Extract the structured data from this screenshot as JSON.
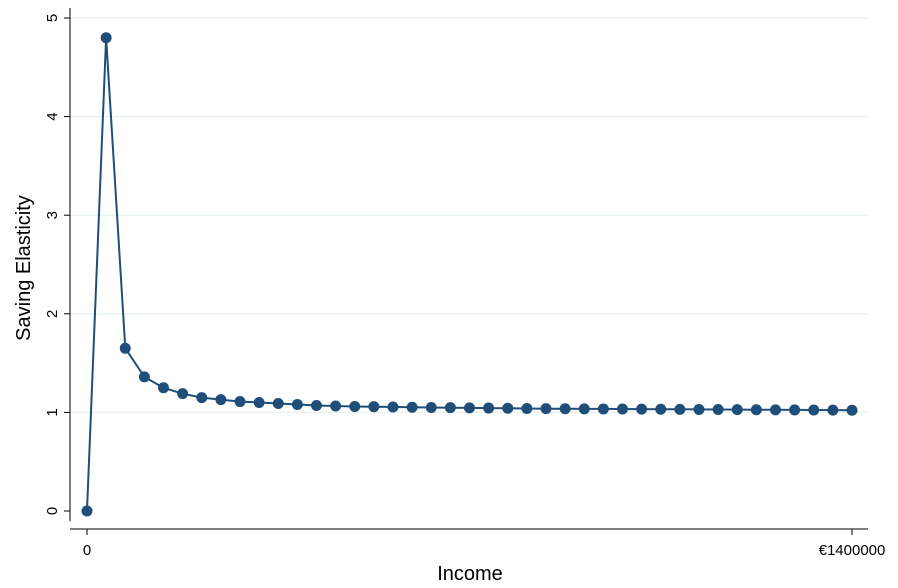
{
  "chart_data": {
    "type": "line",
    "title": "",
    "xlabel": "Income",
    "ylabel": "Saving Elasticity",
    "x_tick_labels": [
      "0",
      "€1400000"
    ],
    "x_ticks": [
      0,
      1400000
    ],
    "y_ticks": [
      0,
      1,
      2,
      3,
      4,
      5
    ],
    "xlim": [
      0,
      1400000
    ],
    "ylim": [
      0,
      5
    ],
    "grid": "horizontal",
    "legend": "none",
    "series": [
      {
        "marker": "circle",
        "color": "#1f4e79",
        "x": [
          0,
          35000,
          70000,
          105000,
          140000,
          175000,
          210000,
          245000,
          280000,
          315000,
          350000,
          385000,
          420000,
          455000,
          490000,
          525000,
          560000,
          595000,
          630000,
          665000,
          700000,
          735000,
          770000,
          805000,
          840000,
          875000,
          910000,
          945000,
          980000,
          1015000,
          1050000,
          1085000,
          1120000,
          1155000,
          1190000,
          1225000,
          1260000,
          1295000,
          1330000,
          1365000,
          1400000
        ],
        "values": [
          0,
          4.8,
          1.65,
          1.36,
          1.25,
          1.19,
          1.15,
          1.13,
          1.11,
          1.1,
          1.09,
          1.08,
          1.07,
          1.065,
          1.06,
          1.058,
          1.055,
          1.052,
          1.05,
          1.048,
          1.046,
          1.044,
          1.042,
          1.04,
          1.038,
          1.037,
          1.036,
          1.035,
          1.034,
          1.033,
          1.032,
          1.031,
          1.03,
          1.029,
          1.028,
          1.027,
          1.026,
          1.025,
          1.024,
          1.023,
          1.022
        ]
      }
    ]
  }
}
